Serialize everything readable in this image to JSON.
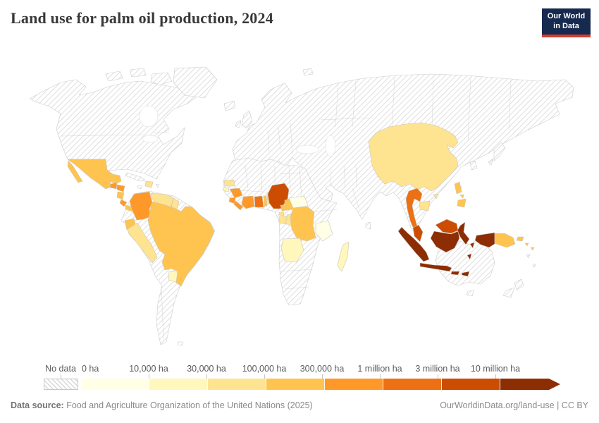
{
  "header": {
    "title": "Land use for palm oil production, 2024",
    "logo": {
      "line1": "Our World",
      "line2": "in Data",
      "bg_color": "#16294e",
      "accent_color": "#d63c2f"
    }
  },
  "legend": {
    "no_data_label": "No data",
    "tick_labels": [
      "0 ha",
      "10,000 ha",
      "30,000 ha",
      "100,000 ha",
      "300,000 ha",
      "1 million ha",
      "3 million ha",
      "10 million ha"
    ],
    "bin_colors": [
      "#FFFFE5",
      "#FFF7BC",
      "#FEE391",
      "#FEC44F",
      "#FE9929",
      "#EC7014",
      "#CC4C02",
      "#8C2D04"
    ]
  },
  "map": {
    "no_data_fill": "diagonal-hatch",
    "countries": [
      {
        "name": "Mexico",
        "bin": 3
      },
      {
        "name": "Guatemala",
        "bin": 4
      },
      {
        "name": "Honduras",
        "bin": 4
      },
      {
        "name": "Nicaragua",
        "bin": 3
      },
      {
        "name": "Costa Rica",
        "bin": 4
      },
      {
        "name": "Panama",
        "bin": 3
      },
      {
        "name": "Dominican Republic",
        "bin": 2
      },
      {
        "name": "Colombia",
        "bin": 4
      },
      {
        "name": "Venezuela",
        "bin": 2
      },
      {
        "name": "Guyana",
        "bin": 2
      },
      {
        "name": "Ecuador",
        "bin": 3
      },
      {
        "name": "Peru",
        "bin": 2
      },
      {
        "name": "Brazil",
        "bin": 3
      },
      {
        "name": "Paraguay",
        "bin": 1
      },
      {
        "name": "Senegal",
        "bin": 2
      },
      {
        "name": "Guinea-Bissau",
        "bin": 1
      },
      {
        "name": "Guinea",
        "bin": 4
      },
      {
        "name": "Sierra Leone",
        "bin": 4
      },
      {
        "name": "Liberia",
        "bin": 4
      },
      {
        "name": "Cote d'Ivoire",
        "bin": 4
      },
      {
        "name": "Ghana",
        "bin": 5
      },
      {
        "name": "Togo",
        "bin": 3
      },
      {
        "name": "Benin",
        "bin": 2
      },
      {
        "name": "Nigeria",
        "bin": 6
      },
      {
        "name": "Cameroon",
        "bin": 3
      },
      {
        "name": "Equatorial Guinea",
        "bin": 2
      },
      {
        "name": "Gabon",
        "bin": 2
      },
      {
        "name": "Congo",
        "bin": 2
      },
      {
        "name": "Democratic Republic of Congo",
        "bin": 3
      },
      {
        "name": "Central African Republic",
        "bin": 0
      },
      {
        "name": "Angola",
        "bin": 1
      },
      {
        "name": "Tanzania",
        "bin": 0
      },
      {
        "name": "Madagascar",
        "bin": 1
      },
      {
        "name": "China",
        "bin": 2
      },
      {
        "name": "Thailand",
        "bin": 5
      },
      {
        "name": "Cambodia",
        "bin": 2
      },
      {
        "name": "Philippines",
        "bin": 3
      },
      {
        "name": "Malaysia",
        "bin": 6
      },
      {
        "name": "Indonesia",
        "bin": 7
      },
      {
        "name": "Papua New Guinea",
        "bin": 3
      },
      {
        "name": "Solomon Islands",
        "bin": 3
      }
    ]
  },
  "footer": {
    "source_label": "Data source:",
    "source_text": " Food and Agriculture Organization of the United Nations (2025)",
    "link_text": "OurWorldinData.org/land-use | CC BY"
  }
}
